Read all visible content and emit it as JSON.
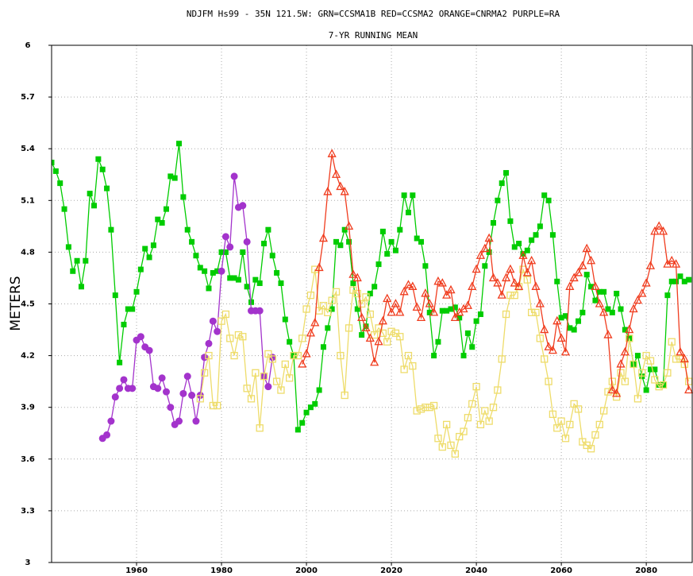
{
  "chart_data": {
    "type": "line",
    "title": "NDJFM Hs99 - 35N 121.5W: GRN=CCSMA1B RED=CCSMA2 ORANGE=CNRMA2 PURPLE=RA",
    "subtitle": "7-YR RUNNING MEAN",
    "ylabel": "METERS",
    "xlim": [
      1940,
      2091
    ],
    "ylim": [
      3,
      6
    ],
    "xticks": [
      1960,
      1980,
      2000,
      2020,
      2040,
      2060,
      2080
    ],
    "yticks": [
      3,
      3.3,
      3.6,
      3.9,
      4.2,
      4.5,
      4.8,
      5.1,
      5.4,
      5.7,
      6
    ],
    "grid": true,
    "series": [
      {
        "color": "#00cc00",
        "marker": "filled-square",
        "x": [
          1940,
          1941,
          1942,
          1943,
          1944,
          1945,
          1946,
          1947,
          1948,
          1949,
          1950,
          1951,
          1952,
          1953,
          1954,
          1955,
          1956,
          1957,
          1958,
          1959,
          1960,
          1961,
          1962,
          1963,
          1964,
          1965,
          1966,
          1967,
          1968,
          1969,
          1970,
          1971,
          1972,
          1973,
          1974,
          1975,
          1976,
          1977,
          1978,
          1979,
          1980,
          1981,
          1982,
          1983,
          1984,
          1985,
          1986,
          1987,
          1988,
          1989,
          1990,
          1991,
          1992,
          1993,
          1994,
          1995,
          1996,
          1997,
          1998,
          1999,
          2000,
          2001,
          2002,
          2003,
          2004,
          2005,
          2006,
          2007,
          2008,
          2009,
          2010,
          2011,
          2012,
          2013,
          2014,
          2015,
          2016,
          2017,
          2018,
          2019,
          2020,
          2021,
          2022,
          2023,
          2024,
          2025,
          2026,
          2027,
          2028,
          2029,
          2030,
          2031,
          2032,
          2033,
          2034,
          2035,
          2036,
          2037,
          2038,
          2039,
          2040,
          2041,
          2042,
          2043,
          2044,
          2045,
          2046,
          2047,
          2048,
          2049,
          2050,
          2051,
          2052,
          2053,
          2054,
          2055,
          2056,
          2057,
          2058,
          2059,
          2060,
          2061,
          2062,
          2063,
          2064,
          2065,
          2066,
          2067,
          2068,
          2069,
          2070,
          2071,
          2072,
          2073,
          2074,
          2075,
          2076,
          2077,
          2078,
          2079,
          2080,
          2081,
          2082,
          2083,
          2084,
          2085,
          2086,
          2087,
          2088,
          2089,
          2090
        ],
        "values": [
          5.32,
          5.27,
          5.2,
          5.05,
          4.83,
          4.69,
          4.75,
          4.6,
          4.75,
          5.14,
          5.07,
          5.34,
          5.28,
          5.17,
          4.93,
          4.55,
          4.16,
          4.38,
          4.47,
          4.47,
          4.57,
          4.7,
          4.82,
          4.77,
          4.84,
          4.99,
          4.97,
          5.05,
          5.24,
          5.23,
          5.43,
          5.12,
          4.93,
          4.86,
          4.78,
          4.71,
          4.69,
          4.59,
          4.68,
          4.69,
          4.8,
          4.8,
          4.65,
          4.65,
          4.64,
          4.8,
          4.6,
          4.51,
          4.64,
          4.62,
          4.85,
          4.93,
          4.78,
          4.68,
          4.62,
          4.41,
          4.28,
          4.2,
          3.77,
          3.81,
          3.87,
          3.9,
          3.92,
          4.0,
          4.25,
          4.36,
          4.47,
          4.86,
          4.84,
          4.93,
          4.86,
          4.62,
          4.47,
          4.32,
          4.37,
          4.56,
          4.6,
          4.73,
          4.92,
          4.79,
          4.86,
          4.81,
          4.93,
          5.13,
          5.03,
          5.13,
          4.88,
          4.86,
          4.72,
          4.45,
          4.2,
          4.28,
          4.46,
          4.46,
          4.47,
          4.48,
          4.42,
          4.2,
          4.33,
          4.25,
          4.4,
          4.44,
          4.72,
          4.8,
          4.97,
          5.1,
          5.2,
          5.26,
          4.98,
          4.83,
          4.85,
          4.79,
          4.81,
          4.87,
          4.9,
          4.95,
          5.13,
          5.1,
          4.9,
          4.63,
          4.42,
          4.43,
          4.36,
          4.35,
          4.4,
          4.45,
          4.67,
          4.6,
          4.52,
          4.57,
          4.57,
          4.47,
          4.45,
          4.56,
          4.47,
          4.35,
          4.3,
          4.15,
          4.2,
          4.08,
          4.0,
          4.12,
          4.12,
          4.03,
          4.03,
          4.55,
          4.63,
          4.63,
          4.66,
          4.63,
          4.64
        ]
      },
      {
        "color": "#a333cc",
        "marker": "filled-circle",
        "x": [
          1952,
          1953,
          1954,
          1955,
          1956,
          1957,
          1958,
          1959,
          1960,
          1961,
          1962,
          1963,
          1964,
          1965,
          1966,
          1967,
          1968,
          1969,
          1970,
          1971,
          1972,
          1973,
          1974,
          1975,
          1976,
          1977,
          1978,
          1979,
          1980,
          1981,
          1982,
          1983,
          1984,
          1985,
          1986,
          1987,
          1988,
          1989,
          1990,
          1991,
          1992
        ],
        "values": [
          3.72,
          3.74,
          3.82,
          3.96,
          4.01,
          4.06,
          4.01,
          4.01,
          4.29,
          4.31,
          4.25,
          4.23,
          4.02,
          4.01,
          4.07,
          3.99,
          3.9,
          3.8,
          3.82,
          3.98,
          4.08,
          3.97,
          3.82,
          3.97,
          4.19,
          4.27,
          4.4,
          4.34,
          4.69,
          4.89,
          4.83,
          5.24,
          5.06,
          5.07,
          4.86,
          4.46,
          4.46,
          4.46,
          4.08,
          4.02,
          4.19
        ]
      },
      {
        "color": "#eedc6a",
        "marker": "open-square",
        "x": [
          1975,
          1976,
          1977,
          1978,
          1979,
          1980,
          1981,
          1982,
          1983,
          1984,
          1985,
          1986,
          1987,
          1988,
          1989,
          1990,
          1991,
          1992,
          1993,
          1994,
          1995,
          1996,
          1997,
          1998,
          1999,
          2000,
          2001,
          2002,
          2003,
          2004,
          2005,
          2006,
          2007,
          2008,
          2009,
          2010,
          2011,
          2012,
          2013,
          2014,
          2015,
          2016,
          2017,
          2018,
          2019,
          2020,
          2021,
          2022,
          2023,
          2024,
          2025,
          2026,
          2027,
          2028,
          2029,
          2030,
          2031,
          2032,
          2033,
          2034,
          2035,
          2036,
          2037,
          2038,
          2039,
          2040,
          2041,
          2042,
          2043,
          2044,
          2045,
          2046,
          2047,
          2048,
          2049,
          2050,
          2051,
          2052,
          2053,
          2054,
          2055,
          2056,
          2057,
          2058,
          2059,
          2060,
          2061,
          2062,
          2063,
          2064,
          2065,
          2066,
          2067,
          2068,
          2069,
          2070,
          2071,
          2072,
          2073,
          2074,
          2075,
          2076,
          2077,
          2078,
          2079,
          2080,
          2081,
          2082,
          2083,
          2084,
          2085,
          2086,
          2087,
          2088,
          2089,
          2090
        ],
        "values": [
          3.95,
          4.1,
          4.2,
          3.91,
          3.91,
          4.4,
          4.44,
          4.3,
          4.2,
          4.32,
          4.31,
          4.01,
          3.95,
          4.1,
          3.78,
          4.08,
          4.21,
          4.18,
          4.05,
          4.0,
          4.15,
          4.07,
          4.2,
          4.2,
          4.3,
          4.47,
          4.55,
          4.7,
          4.46,
          4.49,
          4.45,
          4.52,
          4.57,
          4.2,
          3.97,
          4.36,
          4.58,
          4.56,
          4.5,
          4.54,
          4.44,
          4.32,
          4.36,
          4.33,
          4.28,
          4.34,
          4.33,
          4.31,
          4.12,
          4.2,
          4.14,
          3.88,
          3.89,
          3.9,
          3.9,
          3.91,
          3.72,
          3.67,
          3.8,
          3.68,
          3.63,
          3.73,
          3.76,
          3.84,
          3.92,
          4.02,
          3.8,
          3.88,
          3.82,
          3.9,
          4.0,
          4.18,
          4.44,
          4.55,
          4.55,
          4.6,
          4.7,
          4.64,
          4.45,
          4.45,
          4.3,
          4.18,
          4.05,
          3.86,
          3.78,
          3.82,
          3.72,
          3.8,
          3.92,
          3.89,
          3.7,
          3.68,
          3.66,
          3.74,
          3.8,
          3.88,
          3.99,
          4.05,
          3.96,
          4.1,
          4.05,
          4.3,
          4.15,
          3.95,
          4.1,
          4.2,
          4.17,
          4.06,
          4.02,
          4.03,
          4.1,
          4.28,
          4.18,
          4.18,
          4.15,
          4.05
        ]
      },
      {
        "color": "#f03c1e",
        "marker": "open-triangle",
        "x": [
          1999,
          2000,
          2001,
          2002,
          2003,
          2004,
          2005,
          2006,
          2007,
          2008,
          2009,
          2010,
          2011,
          2012,
          2013,
          2014,
          2015,
          2016,
          2017,
          2018,
          2019,
          2020,
          2021,
          2022,
          2023,
          2024,
          2025,
          2026,
          2027,
          2028,
          2029,
          2030,
          2031,
          2032,
          2033,
          2034,
          2035,
          2036,
          2037,
          2038,
          2039,
          2040,
          2041,
          2042,
          2043,
          2044,
          2045,
          2046,
          2047,
          2048,
          2049,
          2050,
          2051,
          2052,
          2053,
          2054,
          2055,
          2056,
          2057,
          2058,
          2059,
          2060,
          2061,
          2062,
          2063,
          2064,
          2065,
          2066,
          2067,
          2068,
          2069,
          2070,
          2071,
          2072,
          2073,
          2074,
          2075,
          2076,
          2077,
          2078,
          2079,
          2080,
          2081,
          2082,
          2083,
          2084,
          2085,
          2086,
          2087,
          2088,
          2089,
          2090
        ],
        "values": [
          4.15,
          4.21,
          4.33,
          4.39,
          4.71,
          4.88,
          5.15,
          5.37,
          5.25,
          5.18,
          5.15,
          4.95,
          4.67,
          4.65,
          4.42,
          4.36,
          4.3,
          4.16,
          4.28,
          4.4,
          4.53,
          4.45,
          4.5,
          4.45,
          4.57,
          4.61,
          4.6,
          4.48,
          4.42,
          4.56,
          4.5,
          4.45,
          4.63,
          4.62,
          4.55,
          4.58,
          4.42,
          4.45,
          4.47,
          4.49,
          4.6,
          4.7,
          4.78,
          4.82,
          4.88,
          4.65,
          4.62,
          4.55,
          4.65,
          4.7,
          4.62,
          4.6,
          4.78,
          4.68,
          4.75,
          4.6,
          4.5,
          4.35,
          4.25,
          4.23,
          4.4,
          4.3,
          4.22,
          4.6,
          4.65,
          4.68,
          4.72,
          4.82,
          4.75,
          4.6,
          4.5,
          4.45,
          4.32,
          4.0,
          3.98,
          4.15,
          4.22,
          4.35,
          4.47,
          4.52,
          4.56,
          4.62,
          4.72,
          4.92,
          4.95,
          4.92,
          4.73,
          4.75,
          4.73,
          4.22,
          4.18,
          4.0
        ]
      }
    ]
  }
}
